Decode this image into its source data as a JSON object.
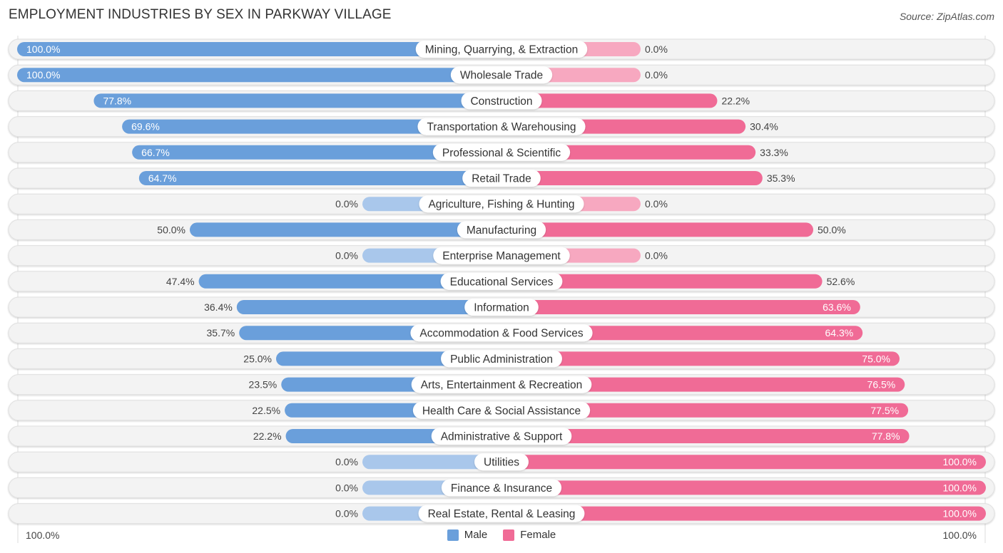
{
  "title": "EMPLOYMENT INDUSTRIES BY SEX IN PARKWAY VILLAGE",
  "source": "Source: ZipAtlas.com",
  "colors": {
    "male": "#6a9fdb",
    "male_light": "#a9c7eb",
    "female": "#f06b96",
    "female_light": "#f7a8c0",
    "track": "#f3f3f3"
  },
  "legend": {
    "male": "Male",
    "female": "Female"
  },
  "axis": {
    "left_label": "100.0%",
    "right_label": "100.0%"
  },
  "chart_data": {
    "type": "bar",
    "orientation": "horizontal-diverging",
    "title": "EMPLOYMENT INDUSTRIES BY SEX IN PARKWAY VILLAGE",
    "xlabel": "",
    "ylabel": "",
    "xlim": [
      -100,
      100
    ],
    "legend_position": "bottom-center",
    "categories": [
      "Mining, Quarrying, & Extraction",
      "Wholesale Trade",
      "Construction",
      "Transportation & Warehousing",
      "Professional & Scientific",
      "Retail Trade",
      "Agriculture, Fishing & Hunting",
      "Manufacturing",
      "Enterprise Management",
      "Educational Services",
      "Information",
      "Accommodation & Food Services",
      "Public Administration",
      "Arts, Entertainment & Recreation",
      "Health Care & Social Assistance",
      "Administrative & Support",
      "Utilities",
      "Finance & Insurance",
      "Real Estate, Rental & Leasing"
    ],
    "series": [
      {
        "name": "Male",
        "values": [
          100.0,
          100.0,
          77.8,
          69.6,
          66.7,
          64.7,
          0.0,
          50.0,
          0.0,
          47.4,
          36.4,
          35.7,
          25.0,
          23.5,
          22.5,
          22.2,
          0.0,
          0.0,
          0.0
        ],
        "labels": [
          "100.0%",
          "100.0%",
          "77.8%",
          "69.6%",
          "66.7%",
          "64.7%",
          "0.0%",
          "50.0%",
          "0.0%",
          "47.4%",
          "36.4%",
          "35.7%",
          "25.0%",
          "23.5%",
          "22.5%",
          "22.2%",
          "0.0%",
          "0.0%",
          "0.0%"
        ]
      },
      {
        "name": "Female",
        "values": [
          0.0,
          0.0,
          22.2,
          30.4,
          33.3,
          35.3,
          0.0,
          50.0,
          0.0,
          52.6,
          63.6,
          64.3,
          75.0,
          76.5,
          77.5,
          77.8,
          100.0,
          100.0,
          100.0
        ],
        "labels": [
          "0.0%",
          "0.0%",
          "22.2%",
          "30.4%",
          "33.3%",
          "35.3%",
          "0.0%",
          "50.0%",
          "0.0%",
          "52.6%",
          "63.6%",
          "64.3%",
          "75.0%",
          "76.5%",
          "77.5%",
          "77.8%",
          "100.0%",
          "100.0%",
          "100.0%"
        ]
      }
    ],
    "axis_tick_labels": [
      "100.0%",
      "100.0%"
    ]
  }
}
